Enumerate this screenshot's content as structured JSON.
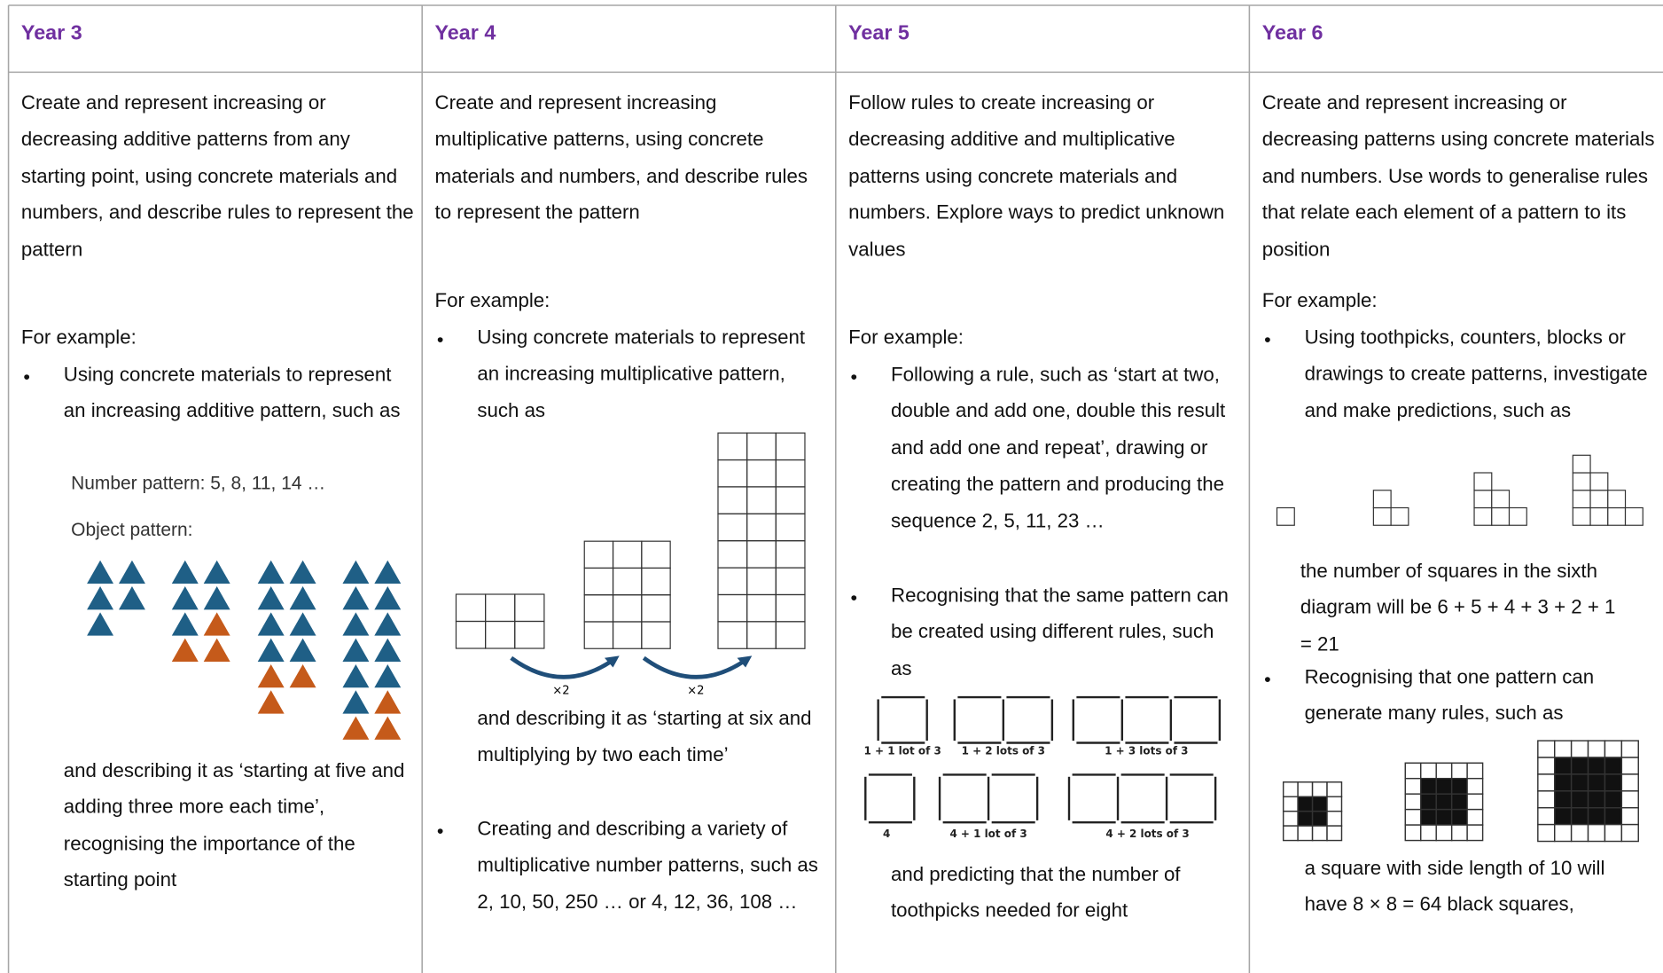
{
  "columns": [
    {
      "heading": "Year 3",
      "description": "Create and represent increasing or decreasing additive patterns from any starting point, using concrete materials and numbers, and describe rules to represent the pattern",
      "example_label": "For example:",
      "items": [
        {
          "text": "Using concrete materials to represent an increasing additive pattern, such as",
          "figure": {
            "number_pattern": "Number pattern: 5, 8, 11, 14 …",
            "object_label": "Object pattern:"
          },
          "after": "and describing it as ‘starting at five and adding three more each time’, recognising the importance of the starting point"
        }
      ]
    },
    {
      "heading": "Year 4",
      "description": "Create and represent increasing multiplicative patterns, using concrete materials and numbers, and describe rules to represent the pattern",
      "example_label": "For example:",
      "items": [
        {
          "text": "Using concrete materials to represent an increasing multiplicative pattern, such as",
          "figure": {
            "labels": [
              "×2",
              "×2"
            ]
          },
          "after": "and describing it as ‘starting at six and multiplying by two each time’"
        },
        {
          "text": "Creating and describing a variety of multiplicative number patterns, such as 2, 10, 50, 250 … or 4, 12, 36, 108 …"
        }
      ]
    },
    {
      "heading": "Year 5",
      "description": "Follow rules to create increasing or decreasing additive and multiplicative patterns using concrete materials and numbers. Explore ways to predict unknown values",
      "example_label": "For example:",
      "items": [
        {
          "text": "Following a rule, such as ‘start at two, double and add one, double this result and add one and repeat’, drawing or creating the pattern and producing the sequence 2, 5, 11, 23 …"
        },
        {
          "text": "Recognising that the same pattern can be created using different rules, such as",
          "figure": {
            "labels": [
              "1 + 1 lot of 3",
              "1 + 2 lots of 3",
              "1 + 3 lots of 3",
              "4",
              "4 + 1 lot of 3",
              "4 + 2 lots of 3"
            ]
          },
          "after": "and predicting that the number of toothpicks needed for eight"
        }
      ]
    },
    {
      "heading": "Year 6",
      "description": "Create and represent increasing or decreasing patterns using concrete materials and numbers. Use words to generalise rules that relate each element of a pattern to its position",
      "example_label": "For example:",
      "items": [
        {
          "text": "Using toothpicks, counters, blocks or drawings to create patterns, investigate and make predictions, such as",
          "after": "the number of squares in the sixth diagram will be 6 + 5 + 4 + 3 + 2 + 1 = 21"
        },
        {
          "text": "Recognising that one pattern can generate many rules, such as",
          "after": "a square with side length of 10 will have 8 × 8 = 64 black squares,"
        }
      ]
    }
  ]
}
